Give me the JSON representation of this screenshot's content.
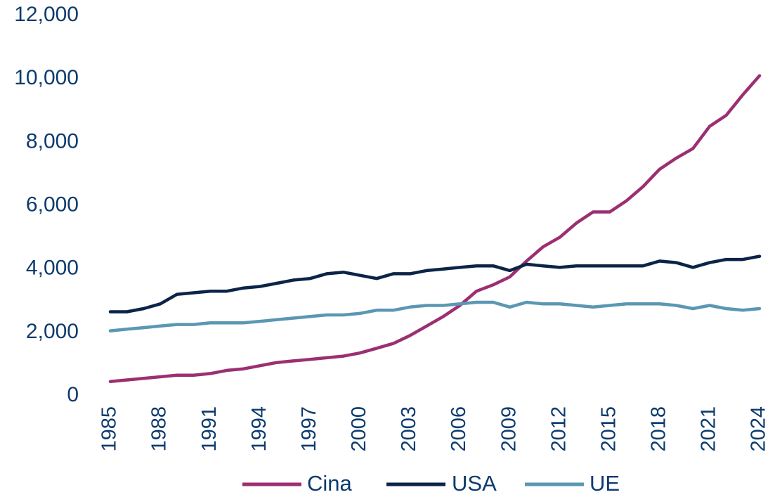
{
  "chart_data": {
    "type": "line",
    "title": "",
    "xlabel": "",
    "ylabel": "",
    "ylim": [
      0,
      12000
    ],
    "yticks": [
      0,
      2000,
      4000,
      6000,
      8000,
      10000,
      12000
    ],
    "ytick_labels": [
      "0",
      "2,000",
      "4,000",
      "6,000",
      "8,000",
      "10,000",
      "12,000"
    ],
    "x": [
      1985,
      1986,
      1987,
      1988,
      1989,
      1990,
      1991,
      1992,
      1993,
      1994,
      1995,
      1996,
      1997,
      1998,
      1999,
      2000,
      2001,
      2002,
      2003,
      2004,
      2005,
      2006,
      2007,
      2008,
      2009,
      2010,
      2011,
      2012,
      2013,
      2014,
      2015,
      2016,
      2017,
      2018,
      2019,
      2020,
      2021,
      2022,
      2023,
      2024
    ],
    "xticks": [
      1985,
      1988,
      1991,
      1994,
      1997,
      2000,
      2003,
      2006,
      2009,
      2012,
      2015,
      2018,
      2021,
      2024
    ],
    "grid": false,
    "legend_position": "bottom",
    "series": [
      {
        "name": "Cina",
        "color": "#9c2f72",
        "values": [
          450,
          500,
          550,
          600,
          650,
          650,
          700,
          800,
          850,
          950,
          1050,
          1100,
          1150,
          1200,
          1250,
          1350,
          1500,
          1650,
          1900,
          2200,
          2500,
          2850,
          3300,
          3500,
          3750,
          4250,
          4700,
          5000,
          5450,
          5800,
          5800,
          6150,
          6600,
          7150,
          7500,
          7800,
          8500,
          8850,
          9500,
          10100
        ]
      },
      {
        "name": "USA",
        "color": "#0b2447",
        "values": [
          2650,
          2650,
          2750,
          2900,
          3200,
          3250,
          3300,
          3300,
          3400,
          3450,
          3550,
          3650,
          3700,
          3850,
          3900,
          3800,
          3700,
          3850,
          3850,
          3950,
          4000,
          4050,
          4100,
          4100,
          3950,
          4150,
          4100,
          4050,
          4100,
          4100,
          4100,
          4100,
          4100,
          4250,
          4200,
          4050,
          4200,
          4300,
          4300,
          4400
        ]
      },
      {
        "name": "UE",
        "color": "#5b97b4",
        "values": [
          2050,
          2100,
          2150,
          2200,
          2250,
          2250,
          2300,
          2300,
          2300,
          2350,
          2400,
          2450,
          2500,
          2550,
          2550,
          2600,
          2700,
          2700,
          2800,
          2850,
          2850,
          2900,
          2950,
          2950,
          2800,
          2950,
          2900,
          2900,
          2850,
          2800,
          2850,
          2900,
          2900,
          2900,
          2850,
          2750,
          2850,
          2750,
          2700,
          2750
        ]
      }
    ]
  }
}
